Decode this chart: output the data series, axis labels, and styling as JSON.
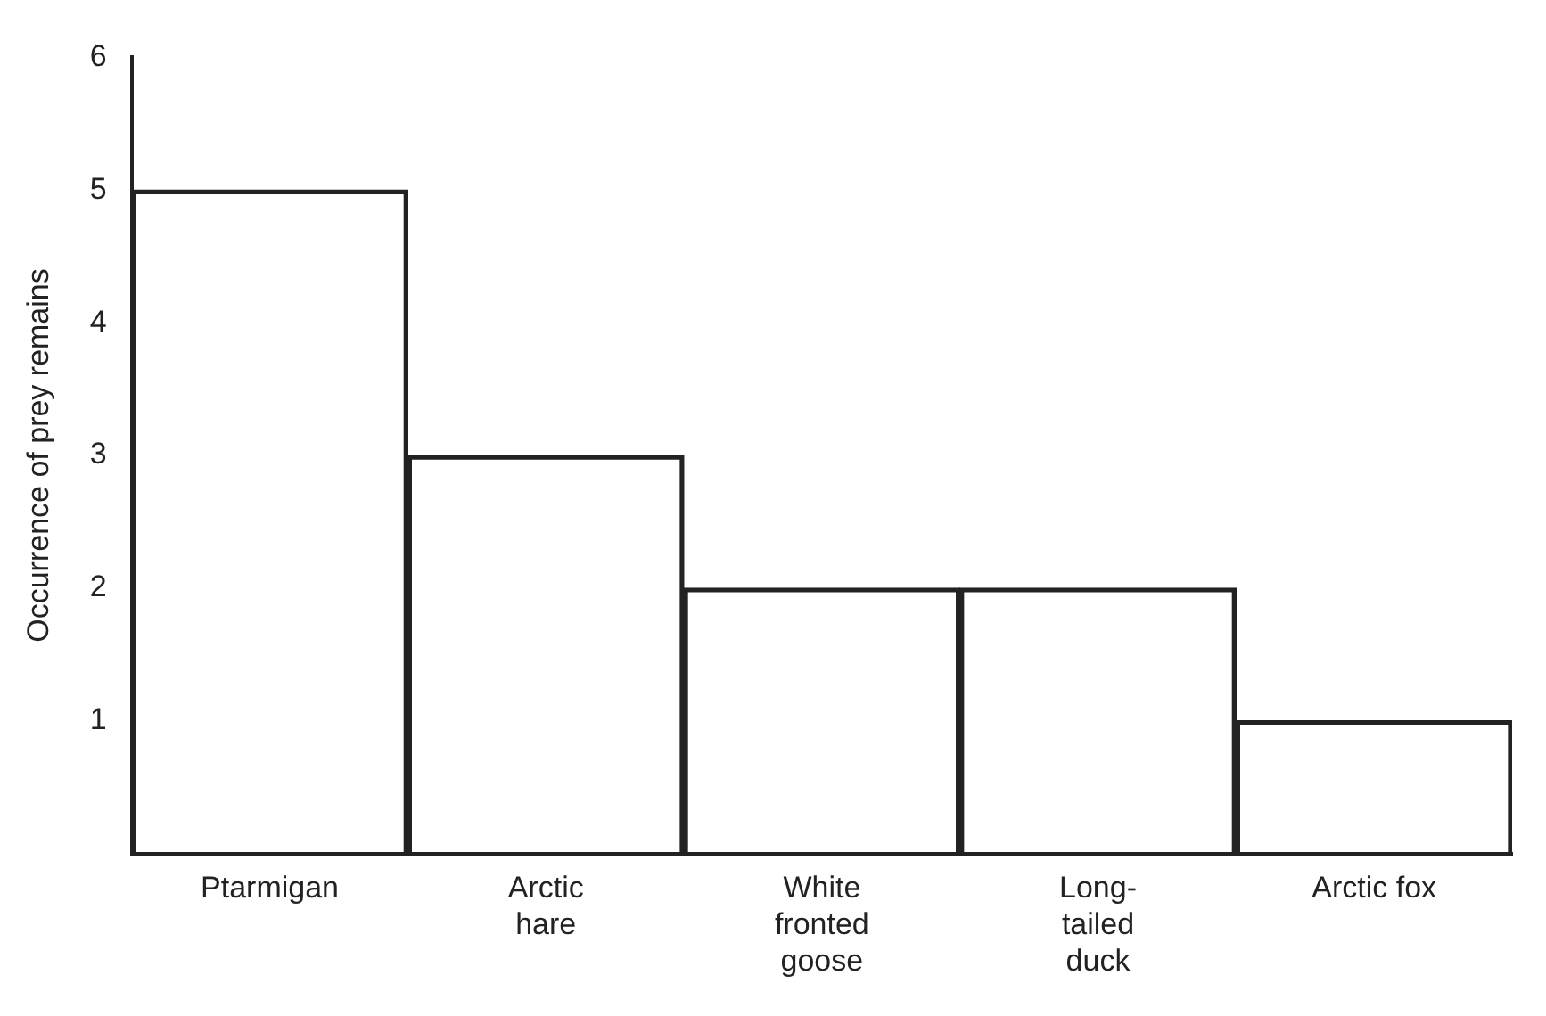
{
  "chart_data": {
    "type": "bar",
    "ylabel": "Occurrence of prey remains",
    "categories": [
      "Ptarmigan",
      "Arctic\nhare",
      "White\nfronted\ngoose",
      "Long-\ntailed\nduck",
      "Arctic fox"
    ],
    "values": [
      5,
      3,
      2,
      2,
      1
    ],
    "color": "#222222",
    "ylim": [
      0,
      6
    ],
    "yticks": [
      1,
      2,
      3,
      4,
      5,
      6
    ],
    "grid": false,
    "legend": false
  }
}
